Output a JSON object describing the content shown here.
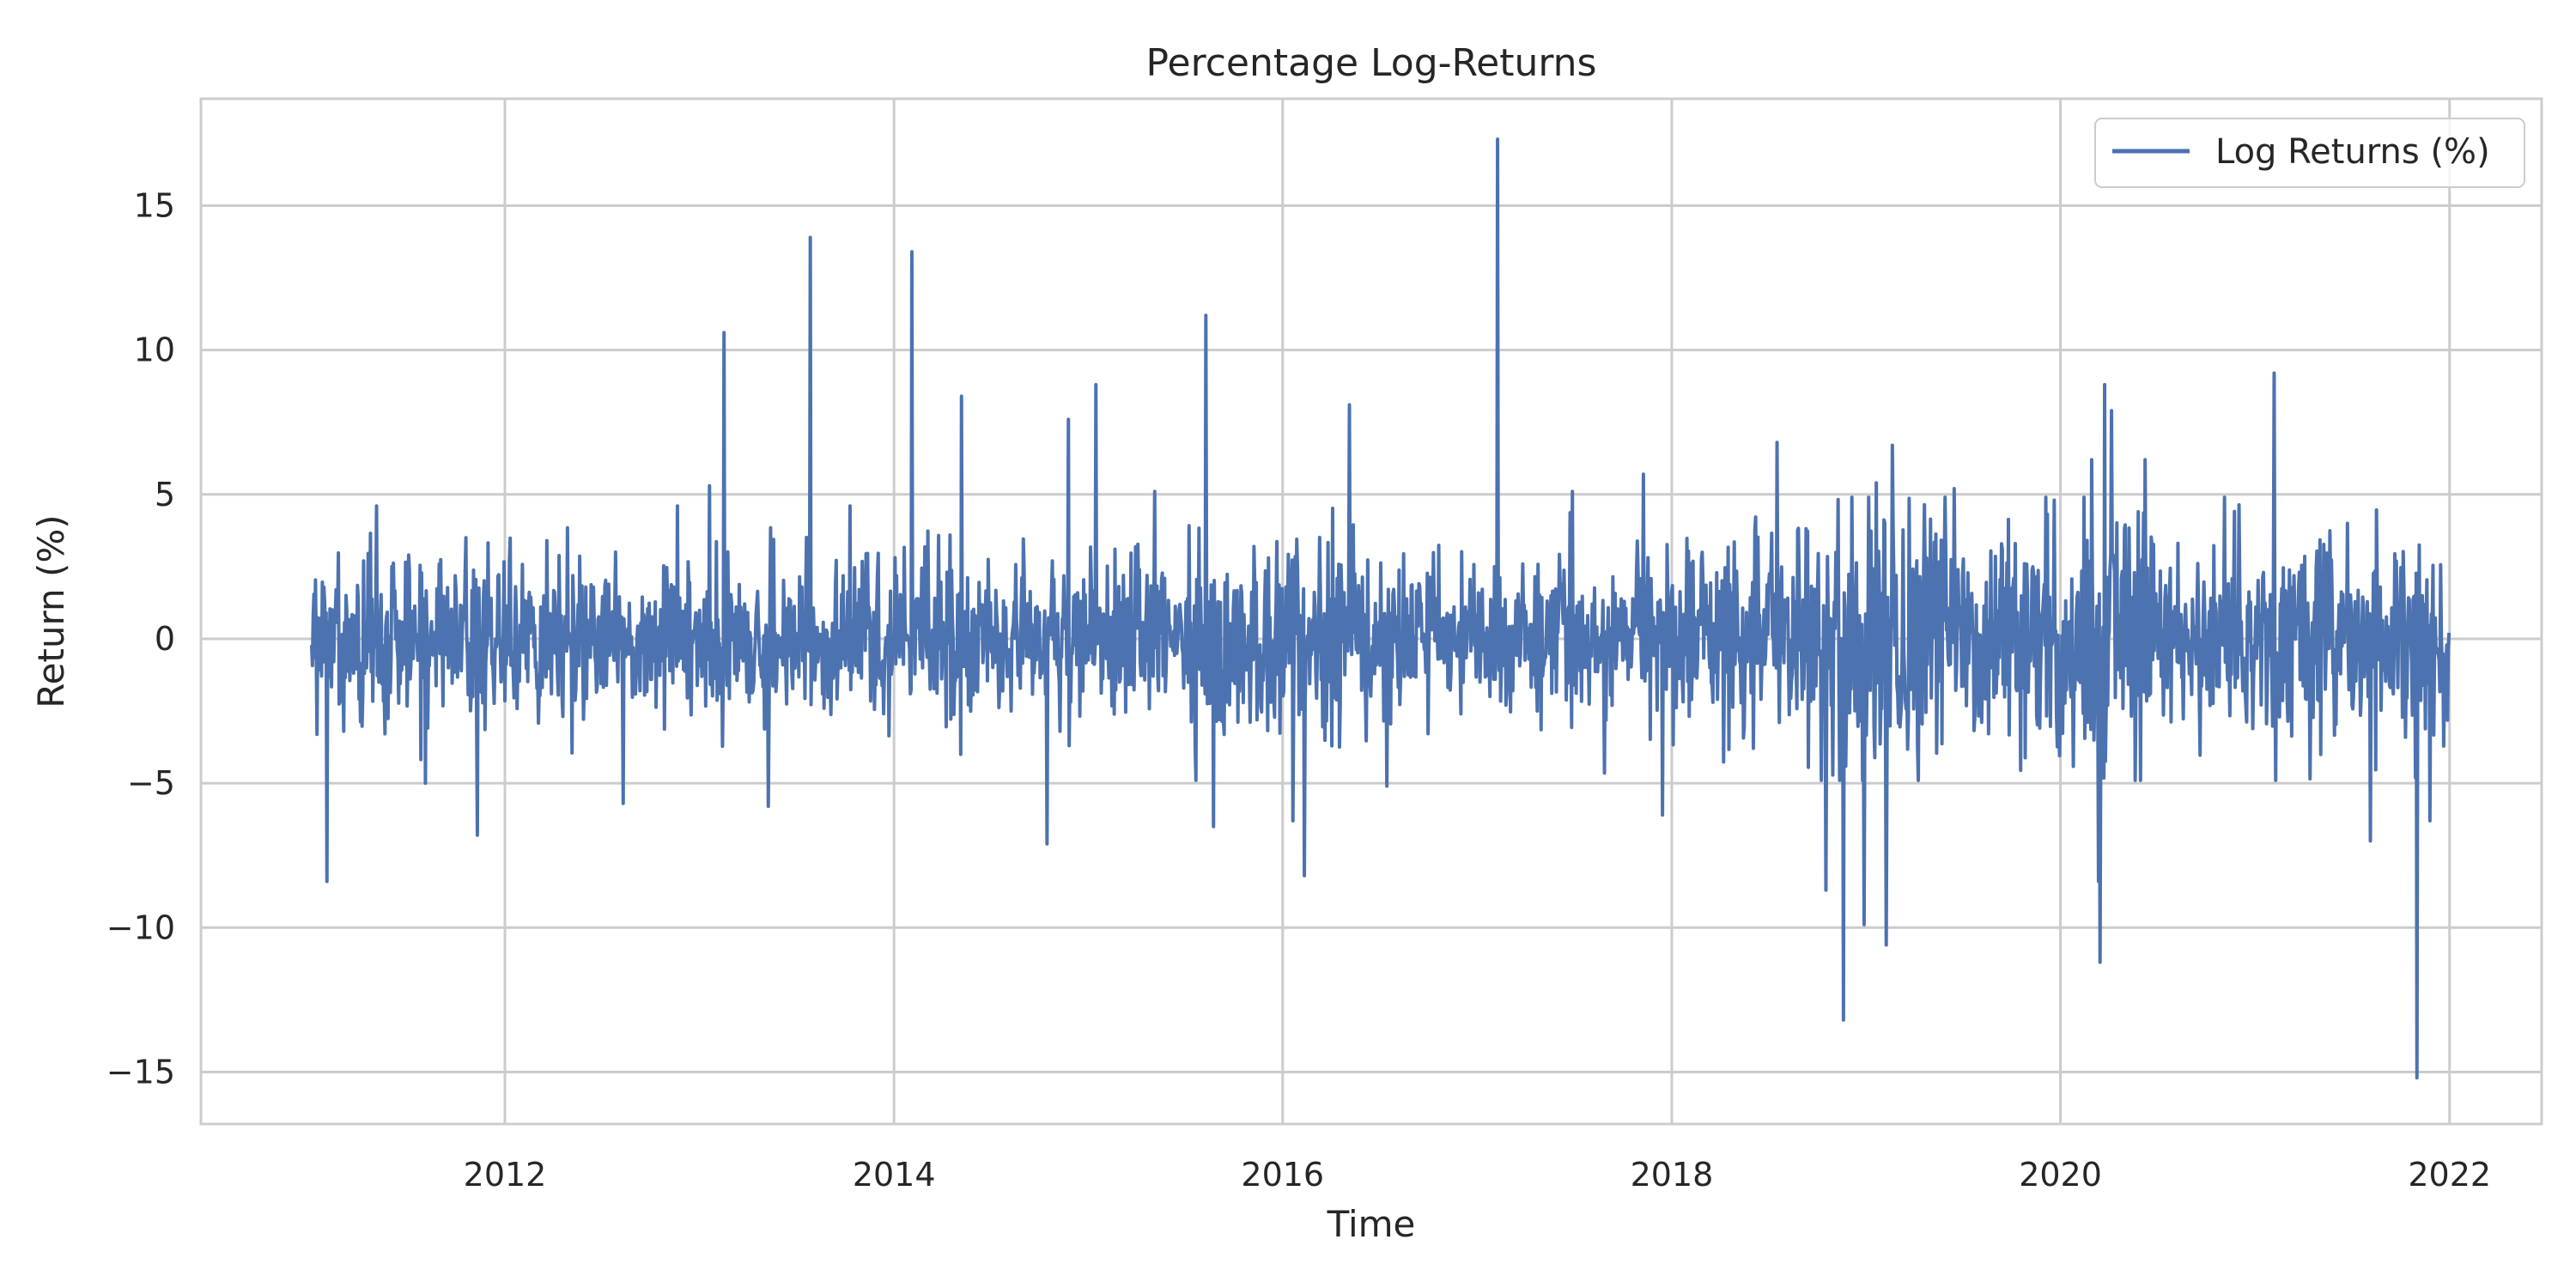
{
  "chart_data": {
    "type": "line",
    "title": "Percentage Log-Returns",
    "xlabel": "Time",
    "ylabel": "Return (%)",
    "xlim": [
      "2010-06-09",
      "2022-06-23"
    ],
    "ylim": [
      -16.8,
      18.7
    ],
    "x_ticks": [
      "2012",
      "2014",
      "2016",
      "2018",
      "2020",
      "2022"
    ],
    "y_ticks": [
      "15",
      "10",
      "5",
      "0",
      "−5",
      "−10",
      "−15"
    ],
    "y_tick_values": [
      15,
      10,
      5,
      0,
      -5,
      -10,
      -15
    ],
    "grid": true,
    "legend": {
      "position": "top-right",
      "entries": [
        "Log Returns (%)"
      ]
    },
    "colors": {
      "series": "#4c72b0",
      "grid": "#cccccc",
      "axes": "#cccccc",
      "text": "#262626"
    },
    "series": [
      {
        "name": "Log Returns (%)",
        "start": "2011-01-03",
        "end": "2021-12-31",
        "approx_points": 2800,
        "spikes": [
          {
            "date": "2011-02-01",
            "value": -8.4
          },
          {
            "date": "2011-05-05",
            "value": 4.6
          },
          {
            "date": "2011-08-05",
            "value": -5.0
          },
          {
            "date": "2011-10-20",
            "value": 3.5
          },
          {
            "date": "2011-11-10",
            "value": -6.8
          },
          {
            "date": "2012-03-20",
            "value": 3.4
          },
          {
            "date": "2012-08-10",
            "value": -5.7
          },
          {
            "date": "2012-11-20",
            "value": 4.6
          },
          {
            "date": "2013-01-20",
            "value": 5.3
          },
          {
            "date": "2013-02-15",
            "value": 10.6
          },
          {
            "date": "2013-05-10",
            "value": -5.8
          },
          {
            "date": "2013-07-28",
            "value": 13.9
          },
          {
            "date": "2013-10-10",
            "value": 4.6
          },
          {
            "date": "2014-02-03",
            "value": 13.4
          },
          {
            "date": "2014-05-07",
            "value": 8.4
          },
          {
            "date": "2014-10-15",
            "value": -7.1
          },
          {
            "date": "2014-11-25",
            "value": 7.6
          },
          {
            "date": "2015-01-15",
            "value": 8.8
          },
          {
            "date": "2015-05-05",
            "value": 5.1
          },
          {
            "date": "2015-08-10",
            "value": 11.2
          },
          {
            "date": "2015-08-24",
            "value": -6.5
          },
          {
            "date": "2016-01-20",
            "value": -6.3
          },
          {
            "date": "2016-02-11",
            "value": -8.2
          },
          {
            "date": "2016-05-05",
            "value": 8.1
          },
          {
            "date": "2016-07-15",
            "value": -5.1
          },
          {
            "date": "2017-02-08",
            "value": 17.3
          },
          {
            "date": "2017-06-28",
            "value": 5.1
          },
          {
            "date": "2017-11-08",
            "value": 5.7
          },
          {
            "date": "2017-12-15",
            "value": -6.1
          },
          {
            "date": "2018-07-18",
            "value": 6.8
          },
          {
            "date": "2018-10-18",
            "value": -8.7
          },
          {
            "date": "2018-11-20",
            "value": -13.2
          },
          {
            "date": "2018-12-28",
            "value": -9.9
          },
          {
            "date": "2019-01-20",
            "value": 5.4
          },
          {
            "date": "2019-02-08",
            "value": -10.6
          },
          {
            "date": "2019-02-20",
            "value": 6.7
          },
          {
            "date": "2019-06-15",
            "value": 5.2
          },
          {
            "date": "2019-12-20",
            "value": 4.8
          },
          {
            "date": "2020-02-28",
            "value": 6.2
          },
          {
            "date": "2020-03-12",
            "value": -8.4
          },
          {
            "date": "2020-03-16",
            "value": -11.2
          },
          {
            "date": "2020-03-24",
            "value": 8.8
          },
          {
            "date": "2020-04-06",
            "value": 7.9
          },
          {
            "date": "2020-06-08",
            "value": 6.2
          },
          {
            "date": "2021-02-05",
            "value": 9.2
          },
          {
            "date": "2021-08-05",
            "value": -7.0
          },
          {
            "date": "2021-11-01",
            "value": -15.2
          },
          {
            "date": "2021-11-25",
            "value": -6.3
          }
        ]
      }
    ]
  }
}
